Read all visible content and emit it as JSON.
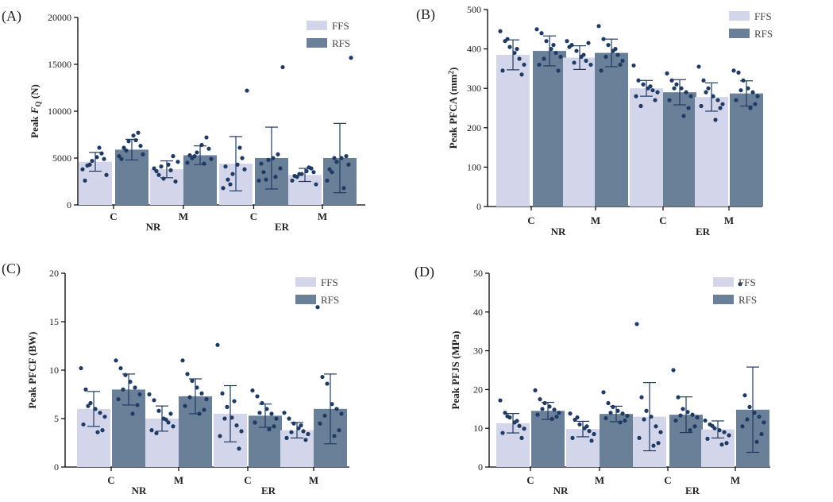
{
  "colors": {
    "ffs": "#d3d5ea",
    "rfs": "#6a8099",
    "dot": "#1f3b63",
    "axis": "#000000"
  },
  "chart_data": [
    {
      "type": "bar",
      "panel": "(A)",
      "ylabel": "Peak F_Q (N)",
      "ylabel_main": "Peak ",
      "ylabel_italic": "F",
      "ylabel_sub": "Q",
      "ylabel_tail": " (N)",
      "ylim": [
        0,
        20000
      ],
      "yticks": [
        0,
        5000,
        10000,
        15000,
        20000
      ],
      "categories": [
        "C",
        "M",
        "C",
        "M"
      ],
      "groups": [
        "NR",
        "ER"
      ],
      "legend": [
        "FFS",
        "RFS"
      ],
      "series": [
        {
          "name": "FFS",
          "values": [
            4600,
            3800,
            4400,
            3200
          ],
          "sd": [
            1000,
            900,
            2900,
            700
          ],
          "points": [
            [
              3800,
              4200,
              4700,
              5100,
              5500,
              3200,
              2600,
              4900,
              6100,
              4300
            ],
            [
              3900,
              3200,
              2800,
              4300,
              5200,
              4600,
              3600,
              2500,
              3700,
              4100
            ],
            [
              1800,
              2700,
              3300,
              4300,
              5000,
              12200,
              4100,
              3800,
              6100,
              2200
            ],
            [
              2600,
              3000,
              3300,
              3600,
              3900,
              2200,
              3100,
              3500,
              4000,
              3300
            ]
          ]
        },
        {
          "name": "RFS",
          "values": [
            5900,
            5300,
            5000,
            5000
          ],
          "sd": [
            1100,
            1000,
            3300,
            3700
          ],
          "points": [
            [
              5200,
              6100,
              6800,
              7400,
              7700,
              5400,
              4900,
              6300,
              6900,
              5800
            ],
            [
              4500,
              5000,
              5600,
              6400,
              7200,
              4900,
              5300,
              6000,
              4400,
              5200
            ],
            [
              2600,
              3500,
              4800,
              5000,
              5400,
              14700,
              4400,
              3900,
              3000,
              2700
            ],
            [
              2600,
              3500,
              4600,
              5000,
              5200,
              15700,
              3800,
              4300,
              1800,
              5000
            ]
          ]
        }
      ]
    },
    {
      "type": "bar",
      "panel": "(B)",
      "ylabel": "Peak PFCA (mm²)",
      "ylabel_main": "Peak PFCA (mm",
      "ylabel_sup": "2",
      "ylabel_tail": ")",
      "ylim": [
        0,
        500
      ],
      "yticks": [
        0,
        100,
        200,
        300,
        400,
        500
      ],
      "categories": [
        "C",
        "M",
        "C",
        "M"
      ],
      "groups": [
        "NR",
        "ER"
      ],
      "legend": [
        "FFS",
        "RFS"
      ],
      "series": [
        {
          "name": "FFS",
          "values": [
            385,
            378,
            300,
            278
          ],
          "sd": [
            38,
            30,
            20,
            36
          ],
          "points": [
            [
              445,
              420,
              405,
              390,
              375,
              360,
              345,
              335,
              400,
              425
            ],
            [
              420,
              410,
              395,
              380,
              370,
              360,
              405,
              415,
              385,
              365
            ],
            [
              358,
              320,
              310,
              300,
              295,
              290,
              280,
              270,
              305,
              255
            ],
            [
              355,
              320,
              300,
              280,
              270,
              260,
              255,
              250,
              220,
              290
            ]
          ]
        },
        {
          "name": "RFS",
          "values": [
            395,
            390,
            290,
            287
          ],
          "sd": [
            38,
            35,
            32,
            32
          ],
          "points": [
            [
              450,
              440,
              420,
              400,
              390,
              380,
              360,
              345,
              410,
              375
            ],
            [
              458,
              425,
              410,
              395,
              385,
              370,
              345,
              360,
              400,
              380
            ],
            [
              338,
              320,
              310,
              300,
              290,
              280,
              270,
              250,
              230,
              300
            ],
            [
              345,
              340,
              320,
              300,
              290,
              280,
              270,
              260,
              250,
              295
            ]
          ]
        }
      ]
    },
    {
      "type": "bar",
      "panel": "(C)",
      "ylabel": "Peak PFCF (BW)",
      "ylabel_main": "Peak PFCF (BW)",
      "ylim": [
        0,
        20
      ],
      "yticks": [
        0,
        5,
        10,
        15,
        20
      ],
      "categories": [
        "C",
        "M",
        "C",
        "M"
      ],
      "groups": [
        "NR",
        "ER"
      ],
      "legend": [
        "FFS",
        "RFS"
      ],
      "series": [
        {
          "name": "FFS",
          "values": [
            6.0,
            5.0,
            5.5,
            3.8
          ],
          "sd": [
            1.8,
            1.3,
            2.9,
            0.8
          ],
          "points": [
            [
              10.2,
              8.0,
              6.6,
              6.0,
              5.6,
              5.2,
              4.4,
              3.8,
              3.6,
              6.3
            ],
            [
              7.5,
              6.9,
              5.8,
              5.0,
              4.6,
              4.2,
              3.8,
              5.5,
              4.9,
              3.5
            ],
            [
              12.6,
              7.6,
              6.2,
              5.1,
              4.3,
              3.7,
              3.2,
              1.9,
              6.8,
              5.0
            ],
            [
              5.6,
              5.0,
              4.5,
              4.0,
              3.7,
              3.4,
              3.0,
              2.8,
              4.3,
              3.6
            ]
          ]
        },
        {
          "name": "RFS",
          "values": [
            8.0,
            7.3,
            5.3,
            6.0
          ],
          "sd": [
            1.6,
            1.8,
            1.2,
            3.6
          ],
          "points": [
            [
              11.0,
              10.2,
              9.5,
              8.8,
              8.2,
              7.5,
              7.0,
              6.4,
              5.5,
              8.0
            ],
            [
              11.0,
              9.6,
              8.9,
              8.2,
              7.6,
              7.0,
              6.3,
              5.9,
              5.5,
              7.2
            ],
            [
              7.9,
              7.3,
              6.6,
              6.0,
              5.5,
              5.0,
              4.6,
              4.2,
              3.9,
              5.6
            ],
            [
              16.5,
              9.3,
              8.6,
              6.5,
              6.0,
              5.5,
              4.5,
              3.8,
              3.2,
              5.3
            ]
          ]
        }
      ]
    },
    {
      "type": "bar",
      "panel": "(D)",
      "ylabel": "Peak PFJS (MPa)",
      "ylabel_main": "Peak PFJS (MPa)",
      "ylim": [
        0,
        50
      ],
      "yticks": [
        0,
        10,
        20,
        30,
        40,
        50
      ],
      "categories": [
        "C",
        "M",
        "C",
        "M"
      ],
      "groups": [
        "NR",
        "ER"
      ],
      "legend": [
        "FFS",
        "RFS"
      ],
      "series": [
        {
          "name": "FFS",
          "values": [
            11.3,
            9.8,
            13.0,
            9.7
          ],
          "sd": [
            2.5,
            2.0,
            8.8,
            2.2
          ],
          "points": [
            [
              17.2,
              14.0,
              12.8,
              11.5,
              10.6,
              9.9,
              8.8,
              7.5,
              11.9,
              13.1
            ],
            [
              13.8,
              12.2,
              11.0,
              10.0,
              9.3,
              8.5,
              7.5,
              6.8,
              10.5,
              12.8
            ],
            [
              36.9,
              18.0,
              14.5,
              13.0,
              10.5,
              9.0,
              7.5,
              6.2,
              5.5,
              12.3
            ],
            [
              12.0,
              11.0,
              10.0,
              9.5,
              9.0,
              8.2,
              7.3,
              6.2,
              5.8,
              10.6
            ]
          ]
        },
        {
          "name": "RFS",
          "values": [
            14.5,
            13.7,
            13.5,
            14.8
          ],
          "sd": [
            2.2,
            2.0,
            4.6,
            11.0
          ],
          "points": [
            [
              19.8,
              17.5,
              16.5,
              15.6,
              14.8,
              14.0,
              13.5,
              13.0,
              12.4,
              15.0
            ],
            [
              19.3,
              16.5,
              15.5,
              14.5,
              13.8,
              13.2,
              12.6,
              12.0,
              11.5,
              14.0
            ],
            [
              25.0,
              18.0,
              15.0,
              14.2,
              13.5,
              12.8,
              12.0,
              10.5,
              9.5,
              13.3
            ],
            [
              47.2,
              18.5,
              15.5,
              14.0,
              13.0,
              11.5,
              10.5,
              8.5,
              6.5,
              12.3
            ]
          ]
        }
      ]
    }
  ]
}
